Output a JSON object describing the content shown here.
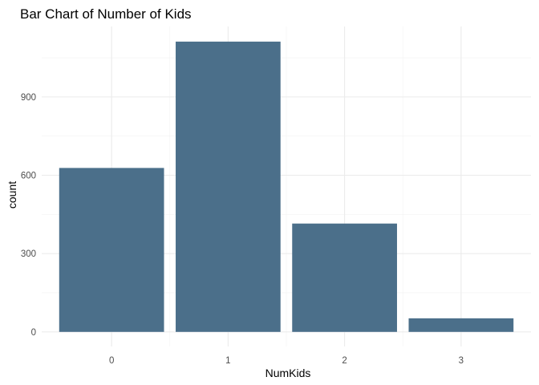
{
  "chart_data": {
    "type": "bar",
    "title": "Bar Chart of Number of Kids",
    "xlabel": "NumKids",
    "ylabel": "count",
    "categories": [
      "0",
      "1",
      "2",
      "3"
    ],
    "values": [
      628,
      1112,
      415,
      52
    ],
    "y_ticks": [
      0,
      300,
      600,
      900
    ],
    "y_tick_labels": [
      "0",
      "300",
      "600",
      "900"
    ],
    "ylim": [
      -56,
      1170
    ],
    "grid": true,
    "legend": "none",
    "bar_color": "#4b6f8a"
  }
}
